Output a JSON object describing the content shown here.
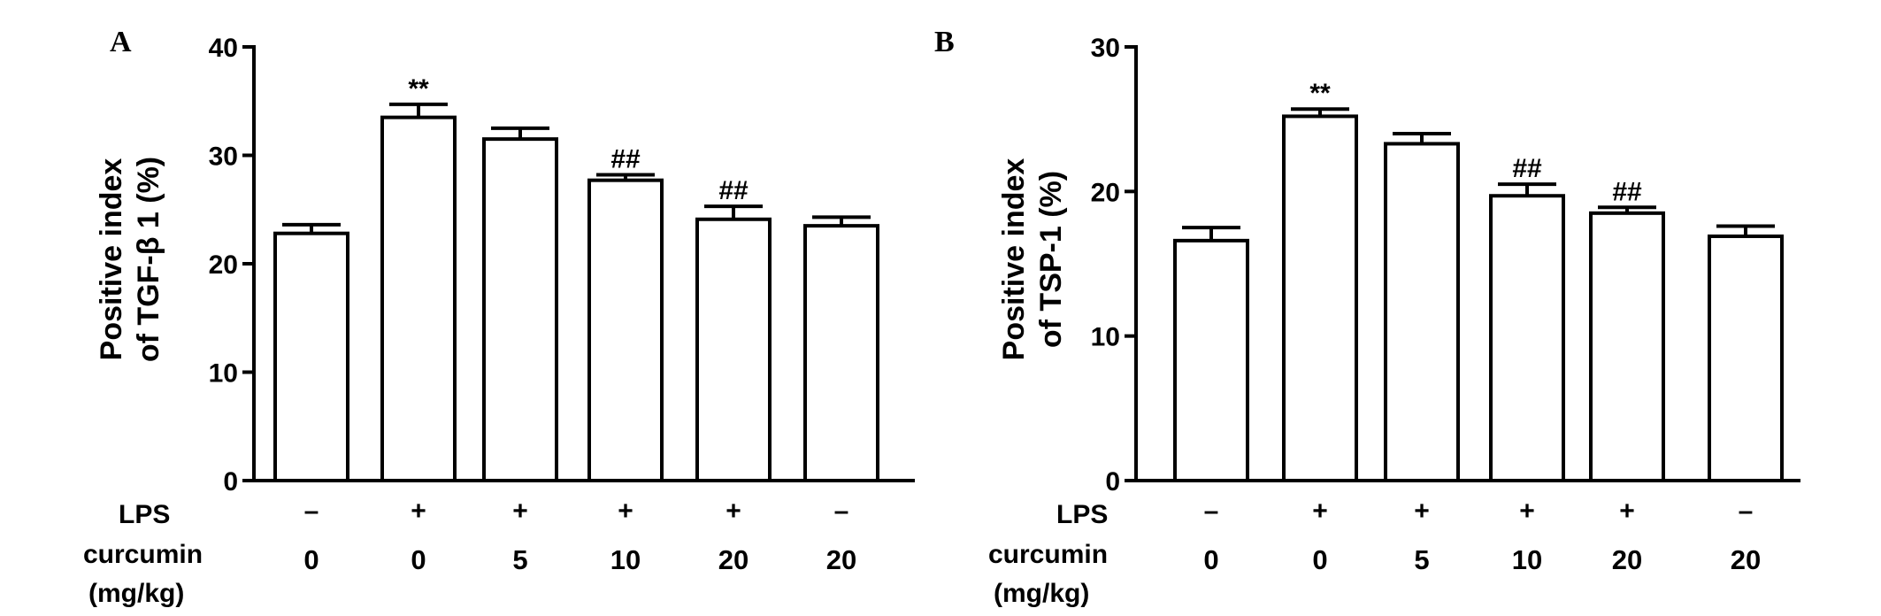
{
  "chart_data": [
    {
      "panel": "A",
      "type": "bar",
      "ylabel": [
        "Positive index",
        "of TGF-β 1 (%)"
      ],
      "ylim": [
        0,
        40
      ],
      "yticks": [
        "0",
        "10",
        "20",
        "30",
        "40"
      ],
      "lps": [
        "–",
        "+",
        "+",
        "+",
        "+",
        "–"
      ],
      "curcumin": [
        "0",
        "0",
        "5",
        "10",
        "20",
        "20"
      ],
      "values": [
        22.8,
        33.5,
        31.5,
        27.7,
        24.1,
        23.5
      ],
      "errors": [
        0.8,
        1.2,
        1.0,
        0.5,
        1.2,
        0.8
      ],
      "annotations": [
        "",
        "**",
        "",
        "##",
        "##",
        ""
      ]
    },
    {
      "panel": "B",
      "type": "bar",
      "ylabel": [
        "Positive index",
        "of TSP-1 (%)"
      ],
      "ylim": [
        0,
        30
      ],
      "yticks": [
        "0",
        "10",
        "20",
        "30"
      ],
      "lps": [
        "–",
        "+",
        "+",
        "+",
        "+",
        "–"
      ],
      "curcumin": [
        "0",
        "0",
        "5",
        "10",
        "20",
        "20"
      ],
      "values": [
        16.6,
        25.2,
        23.3,
        19.7,
        18.5,
        16.9
      ],
      "errors": [
        0.9,
        0.5,
        0.7,
        0.8,
        0.4,
        0.7
      ],
      "annotations": [
        "",
        "**",
        "",
        "##",
        "##",
        ""
      ]
    }
  ],
  "row_labels": {
    "lps": "LPS",
    "curcumin": "curcumin",
    "unit": "(mg/kg)"
  }
}
